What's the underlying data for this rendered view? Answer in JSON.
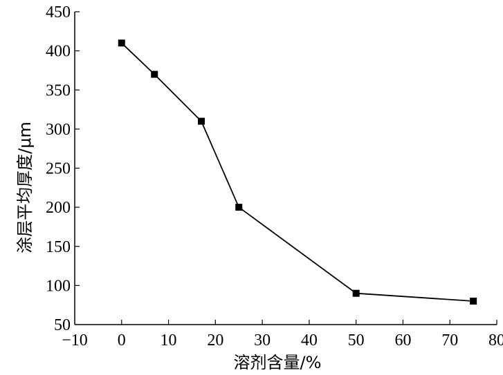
{
  "chart_data": {
    "type": "line",
    "title": "",
    "xlabel": "溶剂含量/%",
    "ylabel": "涂层平均厚度/μm",
    "xlim": [
      -10,
      80
    ],
    "ylim": [
      50,
      450
    ],
    "xticks": [
      -10,
      0,
      10,
      20,
      30,
      40,
      50,
      60,
      70,
      80
    ],
    "yticks": [
      50,
      100,
      150,
      200,
      250,
      300,
      350,
      400,
      450
    ],
    "xtick_labels": [
      "−10",
      "0",
      "10",
      "20",
      "30",
      "40",
      "50",
      "60",
      "70",
      "80"
    ],
    "ytick_labels": [
      "50",
      "100",
      "150",
      "200",
      "250",
      "300",
      "350",
      "400",
      "450"
    ],
    "grid": false,
    "legend": "none",
    "marker": "square",
    "series": [
      {
        "color": "#000000",
        "x": [
          0,
          7,
          17,
          25,
          50,
          75
        ],
        "y": [
          410,
          370,
          310,
          200,
          90,
          80
        ]
      }
    ]
  }
}
